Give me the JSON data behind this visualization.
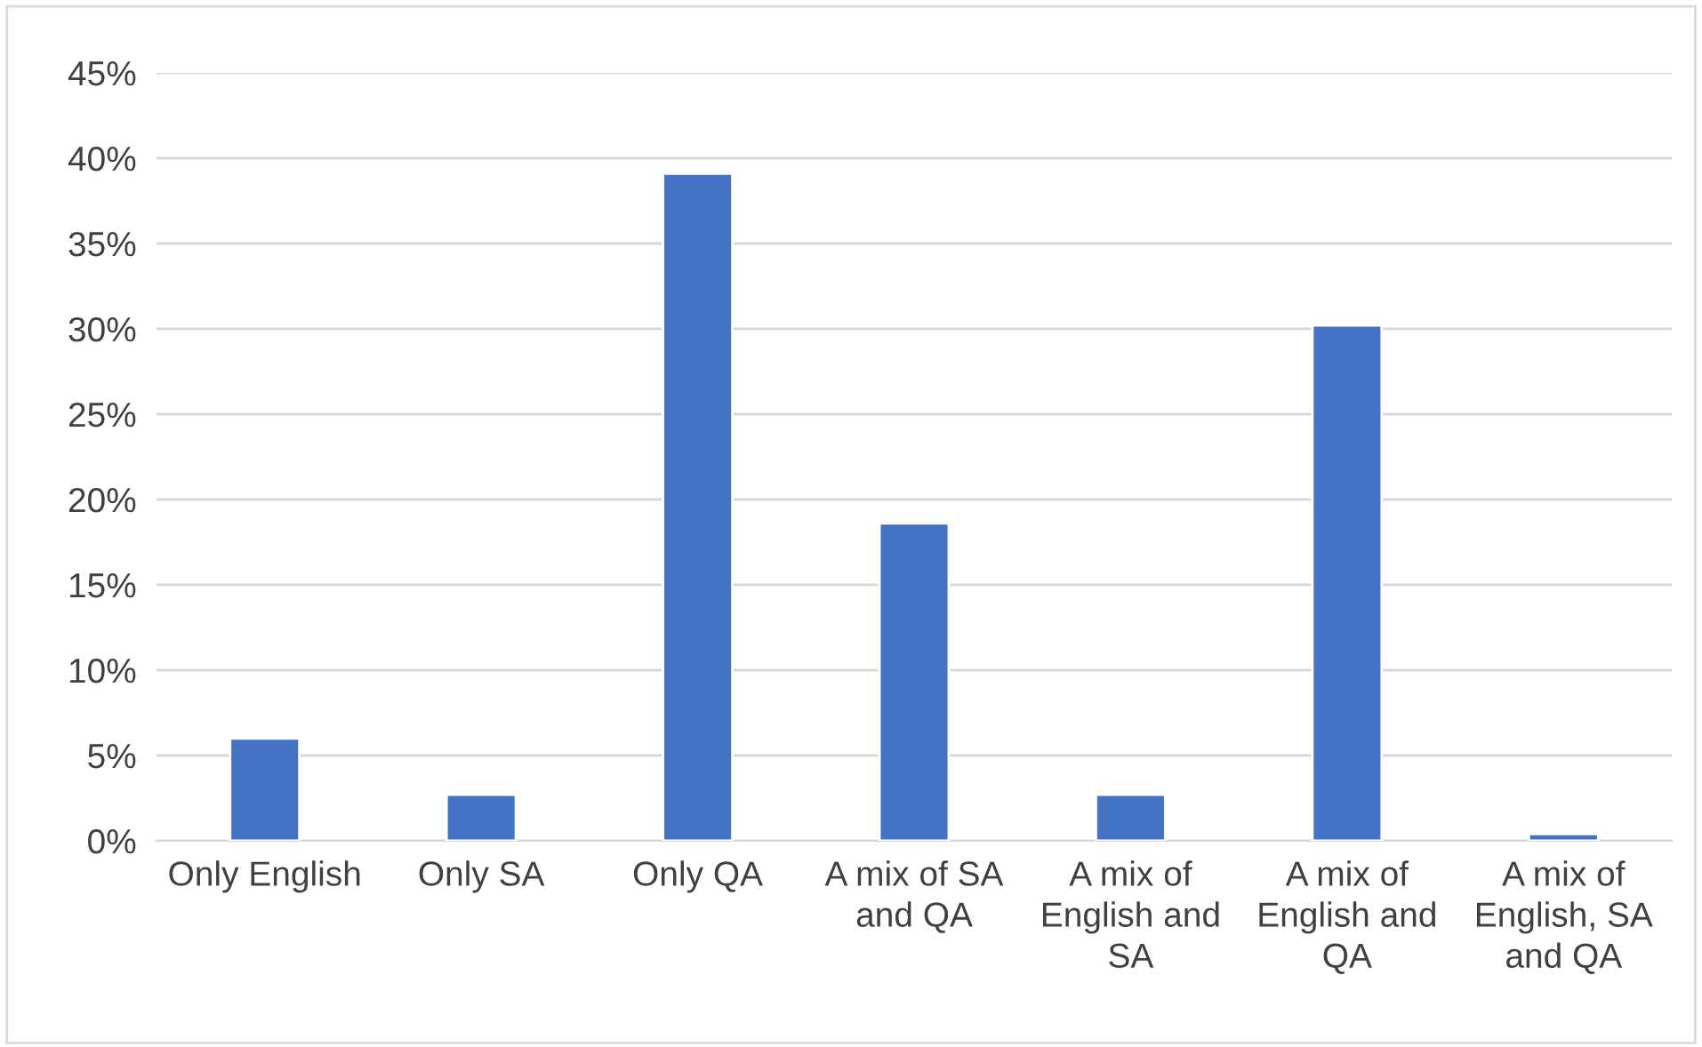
{
  "chart_data": {
    "type": "bar",
    "categories": [
      "Only English",
      "Only SA",
      "Only QA",
      "A mix of SA\nand QA",
      "A mix of\nEnglish and\nSA",
      "A mix of\nEnglish and\nQA",
      "A mix of\nEnglish, SA\nand QA"
    ],
    "values": [
      6.0,
      2.7,
      39.1,
      18.6,
      2.7,
      30.2,
      0.4
    ],
    "color": "#4472c4",
    "ylim": [
      0,
      45
    ],
    "yticks": [
      {
        "value": 0,
        "label": "0%"
      },
      {
        "value": 5,
        "label": "5%"
      },
      {
        "value": 10,
        "label": "10%"
      },
      {
        "value": 15,
        "label": "15%"
      },
      {
        "value": 20,
        "label": "20%"
      },
      {
        "value": 25,
        "label": "25%"
      },
      {
        "value": 30,
        "label": "30%"
      },
      {
        "value": 35,
        "label": "35%"
      },
      {
        "value": 40,
        "label": "40%"
      },
      {
        "value": 45,
        "label": "45%"
      }
    ],
    "grid": "y"
  }
}
